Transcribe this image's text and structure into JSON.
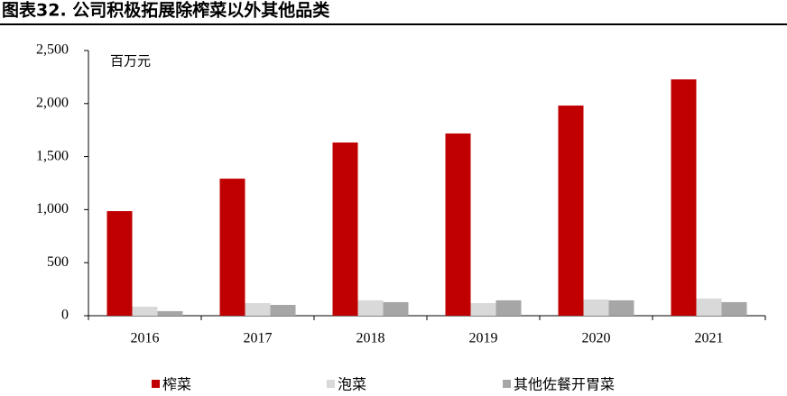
{
  "chart_data": {
    "type": "bar",
    "title": "图表32. 公司积极拓展除榨菜以外其他品类",
    "unit_label": "百万元",
    "categories": [
      "2016",
      "2017",
      "2018",
      "2019",
      "2020",
      "2021"
    ],
    "series": [
      {
        "name": "榨菜",
        "color": "#c00000",
        "values": [
          986,
          1292,
          1633,
          1718,
          1981,
          2228
        ]
      },
      {
        "name": "泡菜",
        "color": "#d9d9d9",
        "values": [
          85,
          119,
          145,
          119,
          153,
          162
        ]
      },
      {
        "name": "其他佐餐开胃菜",
        "color": "#a6a6a6",
        "values": [
          43,
          102,
          128,
          145,
          145,
          128
        ]
      }
    ],
    "ylim": [
      0,
      2500
    ],
    "yticks": [
      0,
      500,
      {
        "value": 1000,
        "label": "1,000"
      },
      {
        "value": 1500,
        "label": "1,500"
      },
      {
        "value": 2000,
        "label": "2,000"
      },
      {
        "value": 2500,
        "label": "2,500"
      }
    ],
    "grid": false
  }
}
